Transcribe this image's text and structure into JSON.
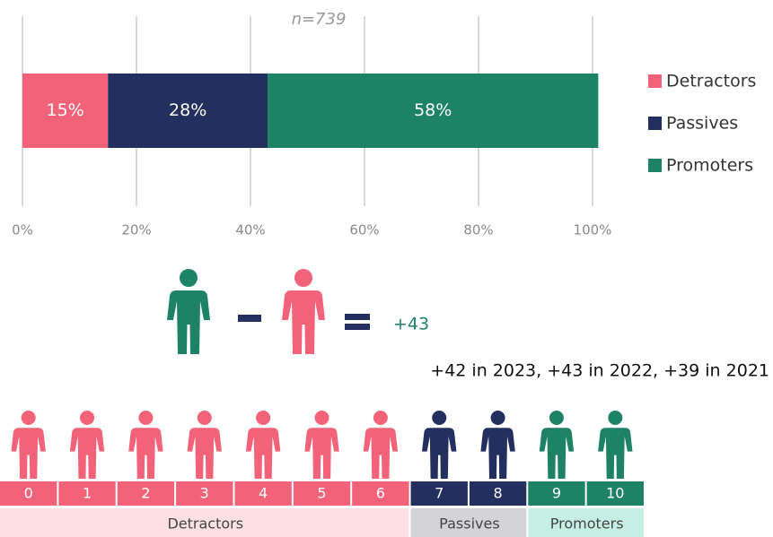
{
  "chart_data": {
    "type": "stacked-bar",
    "subtitle": "n=739",
    "series": [
      {
        "name": "Detractors",
        "color": "#f2637a",
        "values": [
          15
        ],
        "value_labels": [
          "15%"
        ]
      },
      {
        "name": "Passives",
        "color": "#232f5e",
        "values": [
          28
        ],
        "value_labels": [
          "28%"
        ]
      },
      {
        "name": "Promoters",
        "color": "#1e8266",
        "values": [
          58
        ],
        "value_labels": [
          "58%"
        ]
      }
    ],
    "xlim": [
      0,
      100
    ],
    "xticks": [
      {
        "value": 0,
        "label": "0%"
      },
      {
        "value": 20,
        "label": "20%"
      },
      {
        "value": 40,
        "label": "40%"
      },
      {
        "value": 60,
        "label": "60%"
      },
      {
        "value": 80,
        "label": "80%"
      },
      {
        "value": 100,
        "label": "100%"
      }
    ],
    "grid": true,
    "legend": "right"
  },
  "nps": {
    "score": "+43",
    "history": "+42 in 2023, +43 in 2022, +39 in 2021"
  },
  "scale": {
    "points": [
      0,
      1,
      2,
      3,
      4,
      5,
      6,
      7,
      8,
      9,
      10
    ],
    "groups": [
      {
        "name": "Detractors",
        "from": 0,
        "to": 6,
        "color": "#f2637a",
        "background": "#fde0e4"
      },
      {
        "name": "Passives",
        "from": 7,
        "to": 8,
        "color": "#232f5e",
        "background": "#d4d4d8"
      },
      {
        "name": "Promoters",
        "from": 9,
        "to": 10,
        "color": "#1e8266",
        "background": "#c6efe3"
      }
    ]
  }
}
